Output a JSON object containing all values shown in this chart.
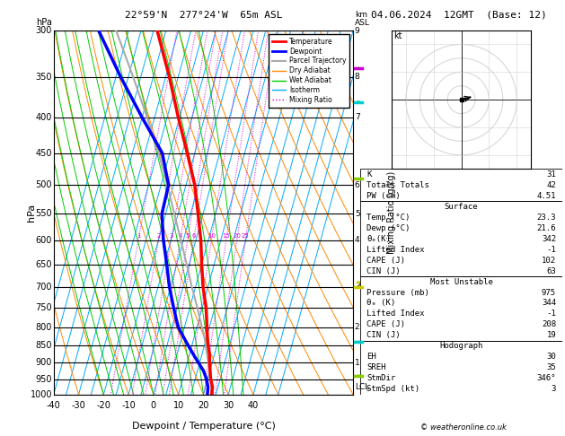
{
  "title_left": "22°59'N  277°24'W  65m ASL",
  "title_right": "04.06.2024  12GMT  (Base: 12)",
  "xlabel": "Dewpoint / Temperature (°C)",
  "ylabel_left": "hPa",
  "pres_levels": [
    300,
    350,
    400,
    450,
    500,
    550,
    600,
    650,
    700,
    750,
    800,
    850,
    900,
    950,
    1000
  ],
  "pres_min": 300,
  "pres_max": 1000,
  "temp_min": -40,
  "temp_max": 40,
  "skew_factor": 40,
  "isotherm_color": "#00aaff",
  "dry_adiabat_color": "#ff8800",
  "wet_adiabat_color": "#00cc00",
  "mixing_ratio_color": "#dd00dd",
  "temp_color": "#ff0000",
  "dewpoint_color": "#0000ff",
  "parcel_color": "#aaaaaa",
  "isotherms": [
    -50,
    -45,
    -40,
    -35,
    -30,
    -25,
    -20,
    -15,
    -10,
    -5,
    0,
    5,
    10,
    15,
    20,
    25,
    30,
    35,
    40,
    45,
    50
  ],
  "mixing_ratios": [
    1,
    2,
    3,
    4,
    5,
    6,
    10,
    15,
    20,
    25
  ],
  "dry_adiabats_theta": [
    -40,
    -30,
    -20,
    -10,
    0,
    10,
    20,
    30,
    40,
    50,
    60,
    70,
    80,
    90,
    100,
    110,
    120,
    130,
    140,
    150
  ],
  "wet_adiabats_theta": [
    -20,
    -16,
    -12,
    -8,
    -4,
    0,
    4,
    8,
    12,
    16,
    20,
    24,
    28,
    32,
    36
  ],
  "km_ticks": {
    "300": 9,
    "350": 8,
    "400": 7,
    "500": 6,
    "550": 5,
    "600": 4,
    "700": 3,
    "800": 2,
    "900": 1
  },
  "temp_profile_p": [
    1000,
    975,
    950,
    925,
    900,
    875,
    850,
    825,
    800,
    775,
    750,
    700,
    650,
    600,
    550,
    500,
    450,
    400,
    350,
    300
  ],
  "temp_profile_t": [
    23.3,
    22.8,
    21.2,
    20.1,
    19.0,
    18.0,
    16.5,
    15.2,
    14.0,
    12.8,
    11.5,
    8.0,
    5.0,
    2.0,
    -2.0,
    -6.5,
    -13.0,
    -20.5,
    -28.5,
    -38.5
  ],
  "dewp_profile_p": [
    1000,
    975,
    950,
    925,
    900,
    875,
    850,
    825,
    800,
    775,
    750,
    700,
    650,
    600,
    550,
    500,
    450,
    400,
    350,
    300
  ],
  "dewp_profile_t": [
    21.6,
    21.0,
    19.5,
    17.5,
    14.5,
    11.5,
    8.5,
    5.5,
    2.5,
    0.5,
    -1.5,
    -5.5,
    -9.0,
    -13.0,
    -16.5,
    -17.0,
    -23.0,
    -35.0,
    -48.0,
    -62.0
  ],
  "parcel_profile_p": [
    1000,
    975,
    950,
    925,
    900,
    875,
    850,
    825,
    800,
    775,
    750,
    700,
    650,
    600,
    550,
    500,
    450,
    400,
    350,
    300
  ],
  "parcel_profile_t": [
    23.3,
    22.3,
    21.1,
    19.8,
    18.5,
    17.0,
    15.5,
    14.0,
    12.0,
    10.0,
    8.0,
    3.5,
    -1.0,
    -6.0,
    -11.5,
    -17.5,
    -24.5,
    -33.0,
    -43.0,
    -55.0
  ],
  "lcl_pressure": 975,
  "stats_K": 31,
  "stats_TT": 42,
  "stats_PW": "4.51",
  "surf_temp": "23.3",
  "surf_dewp": "21.6",
  "surf_theta": "342",
  "surf_li": "-1",
  "surf_cape": "102",
  "surf_cin": "63",
  "mu_pres": "975",
  "mu_theta": "344",
  "mu_li": "-1",
  "mu_cape": "208",
  "mu_cin": "19",
  "hodo_eh": "30",
  "hodo_sreh": "35",
  "hodo_stmdir": "346°",
  "hodo_stmspd": "3",
  "wind_colors": [
    "#cc00cc",
    "#00cccc",
    "#88cc00",
    "#cccc00",
    "#00cccc",
    "#88cc00"
  ],
  "wind_pressures": [
    340,
    380,
    490,
    690,
    840,
    940
  ]
}
